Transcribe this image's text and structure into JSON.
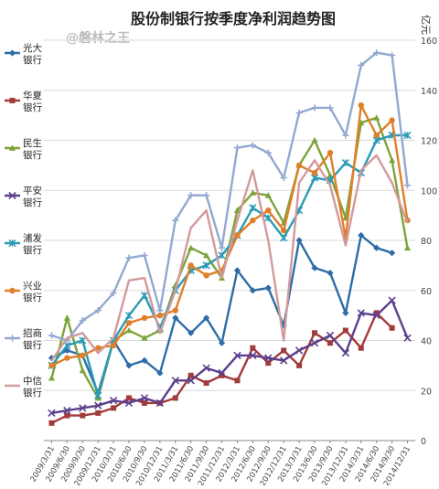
{
  "watermark": "@磐林之王",
  "unit_label": "亿元",
  "chart_data": {
    "type": "line",
    "title": "股份制银行按季度净利润趋势图",
    "xlabel": "",
    "ylabel": "",
    "ylabel_right": "亿元",
    "ylim": [
      0,
      160
    ],
    "yticks": [
      0,
      20,
      40,
      60,
      80,
      100,
      120,
      140,
      160
    ],
    "grid": true,
    "legend_position": "left",
    "x": [
      "2009/3/31",
      "2009/6/30",
      "2009/9/30",
      "2009/12/31",
      "2010/3/31",
      "2010/6/30",
      "2010/9/30",
      "2010/12/31",
      "2011/3/31",
      "2011/6/30",
      "2011/9/30",
      "2011/12/31",
      "2012/3/31",
      "2012/6/30",
      "2012/9/30",
      "2012/12/31",
      "2013/3/31",
      "2013/6/30",
      "2013/9/30",
      "2013/12/31",
      "2014/3/31",
      "2014/6/30",
      "2014/9/30",
      "2014/12/31"
    ],
    "series": [
      {
        "name": "光大银行",
        "color": "#2e6ca8",
        "marker": "diamond",
        "values": [
          33,
          36,
          34,
          19,
          40,
          30,
          32,
          27,
          49,
          43,
          49,
          39,
          68,
          60,
          61,
          46,
          80,
          69,
          67,
          51,
          82,
          77,
          75,
          null
        ]
      },
      {
        "name": "华夏银行",
        "color": "#a23b3b",
        "marker": "square",
        "values": [
          7,
          10,
          10,
          11,
          13,
          17,
          15,
          15,
          17,
          26,
          23,
          26,
          24,
          37,
          31,
          36,
          30,
          43,
          39,
          44,
          37,
          51,
          45,
          null
        ]
      },
      {
        "name": "民生银行",
        "color": "#7da43a",
        "marker": "triangle",
        "values": [
          25,
          49,
          28,
          17,
          40,
          44,
          41,
          44,
          62,
          77,
          74,
          65,
          92,
          99,
          98,
          87,
          110,
          120,
          106,
          89,
          127,
          129,
          112,
          77
        ]
      },
      {
        "name": "平安银行",
        "color": "#5c3f8c",
        "marker": "x",
        "values": [
          11,
          12,
          13,
          14,
          16,
          15,
          17,
          15,
          24,
          24,
          29,
          27,
          34,
          34,
          33,
          32,
          36,
          39,
          42,
          35,
          51,
          50,
          56,
          41
        ]
      },
      {
        "name": "浦发银行",
        "color": "#2b9bb5",
        "marker": "asterisk",
        "values": [
          30,
          38,
          40,
          18,
          40,
          50,
          58,
          45,
          60,
          68,
          70,
          74,
          82,
          93,
          89,
          81,
          92,
          105,
          104,
          111,
          107,
          120,
          122,
          122
        ]
      },
      {
        "name": "兴业银行",
        "color": "#e07f29",
        "marker": "circle",
        "values": [
          30,
          33,
          34,
          37,
          38,
          47,
          49,
          50,
          52,
          70,
          66,
          68,
          82,
          88,
          92,
          84,
          110,
          107,
          115,
          81,
          134,
          122,
          128,
          88
        ]
      },
      {
        "name": "招商银行",
        "color": "#93a8d1",
        "marker": "cross",
        "values": [
          42,
          40,
          48,
          52,
          59,
          73,
          74,
          52,
          88,
          98,
          98,
          77,
          117,
          118,
          115,
          105,
          131,
          133,
          133,
          122,
          150,
          155,
          154,
          102
        ]
      },
      {
        "name": "中信银行",
        "color": "#d29a9c",
        "marker": "none",
        "values": [
          32,
          41,
          43,
          35,
          41,
          64,
          65,
          43,
          60,
          85,
          92,
          65,
          88,
          108,
          80,
          40,
          103,
          112,
          102,
          78,
          108,
          114,
          103,
          87
        ]
      }
    ]
  }
}
